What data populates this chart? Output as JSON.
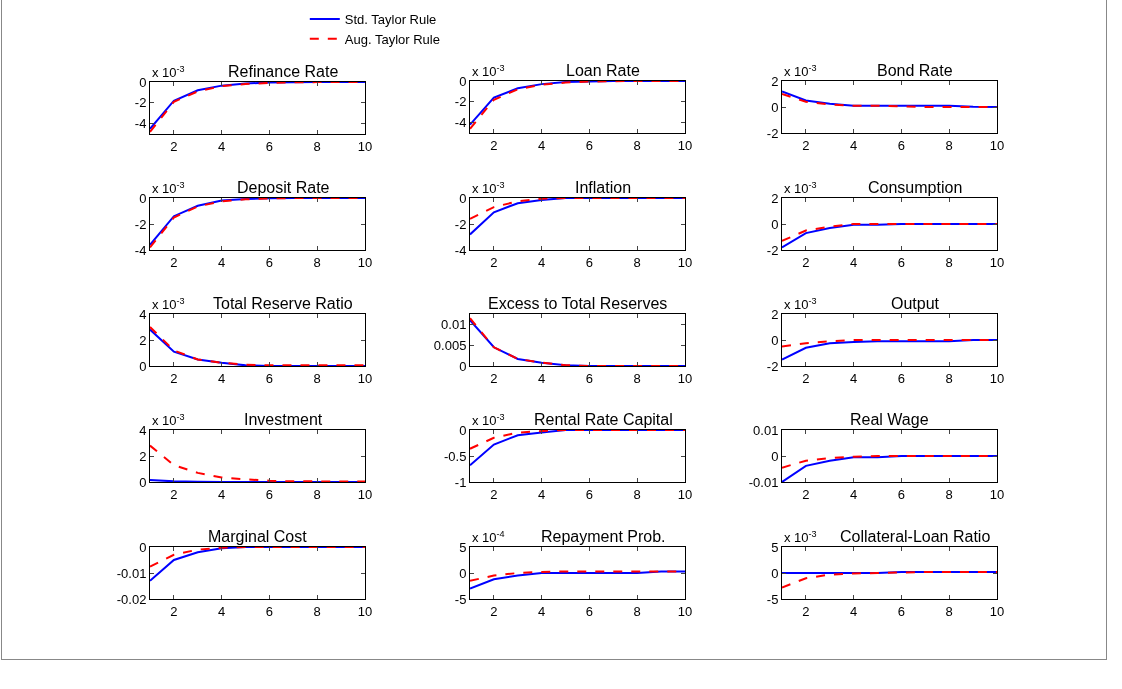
{
  "chart_data": [
    {
      "type": "line",
      "title": "Refinance Rate",
      "annotations": [
        "x 10$^{-3}$"
      ],
      "legend": "top",
      "grid": false,
      "marker": "none",
      "x": [
        1,
        2,
        3,
        4,
        5,
        6,
        7,
        8,
        9,
        10
      ],
      "xlim": [
        1,
        10
      ],
      "xticks": [
        2,
        4,
        6,
        8,
        10
      ],
      "ylim": [
        -5,
        0
      ],
      "yticks": [
        -4,
        -2,
        0
      ],
      "series": [
        {
          "name": "Std. Taylor Rule",
          "color": "#0000ff",
          "line_style": "solid",
          "values": [
            -4.5,
            -1.8,
            -0.8,
            -0.35,
            -0.15,
            -0.05,
            -0.02,
            0,
            0,
            0
          ]
        },
        {
          "name": "Aug. Taylor Rule",
          "color": "#ff0000",
          "line_style": "dashed",
          "values": [
            -4.8,
            -1.9,
            -0.9,
            -0.4,
            -0.2,
            -0.08,
            -0.03,
            -0.01,
            0,
            0
          ]
        }
      ]
    },
    {
      "type": "line",
      "title": "Loan Rate",
      "annotations": [
        "x 10$^{-3}$"
      ],
      "grid": false,
      "marker": "none",
      "x": [
        1,
        2,
        3,
        4,
        5,
        6,
        7,
        8,
        9,
        10
      ],
      "xlim": [
        1,
        10
      ],
      "xticks": [
        2,
        4,
        6,
        8,
        10
      ],
      "ylim": [
        -5,
        0
      ],
      "yticks": [
        -4,
        -2,
        0
      ],
      "series": [
        {
          "color": "#0000ff",
          "line_style": "solid",
          "values": [
            -4.2,
            -1.6,
            -0.7,
            -0.3,
            -0.1,
            -0.04,
            0,
            0,
            0,
            0
          ]
        },
        {
          "color": "#ff0000",
          "line_style": "dashed",
          "values": [
            -4.6,
            -1.8,
            -0.8,
            -0.35,
            -0.15,
            -0.05,
            -0.02,
            0,
            0,
            0
          ]
        }
      ]
    },
    {
      "type": "line",
      "title": "Bond Rate",
      "annotations": [
        "x 10$^{-3}$"
      ],
      "grid": false,
      "marker": "none",
      "x": [
        1,
        2,
        3,
        4,
        5,
        6,
        7,
        8,
        9,
        10
      ],
      "xlim": [
        1,
        10
      ],
      "xticks": [
        2,
        4,
        6,
        8,
        10
      ],
      "ylim": [
        -2,
        2
      ],
      "yticks": [
        -2,
        0,
        2
      ],
      "series": [
        {
          "color": "#0000ff",
          "line_style": "solid",
          "values": [
            1.2,
            0.5,
            0.25,
            0.1,
            0.1,
            0.1,
            0.1,
            0.1,
            0.02,
            0
          ]
        },
        {
          "color": "#ff0000",
          "line_style": "dashed",
          "values": [
            1.0,
            0.4,
            0.2,
            0.1,
            0.1,
            0.05,
            0,
            0,
            0,
            0
          ]
        }
      ]
    },
    {
      "type": "line",
      "title": "Deposit Rate",
      "annotations": [
        "x 10$^{-3}$"
      ],
      "grid": false,
      "marker": "none",
      "x": [
        1,
        2,
        3,
        4,
        5,
        6,
        7,
        8,
        9,
        10
      ],
      "xlim": [
        1,
        10
      ],
      "xticks": [
        2,
        4,
        6,
        8,
        10
      ],
      "ylim": [
        -4,
        0
      ],
      "yticks": [
        -4,
        -2,
        0
      ],
      "series": [
        {
          "color": "#0000ff",
          "line_style": "solid",
          "values": [
            -3.6,
            -1.4,
            -0.6,
            -0.2,
            -0.08,
            -0.02,
            0,
            0,
            0,
            0
          ]
        },
        {
          "color": "#ff0000",
          "line_style": "dashed",
          "values": [
            -3.8,
            -1.5,
            -0.65,
            -0.25,
            -0.1,
            -0.03,
            0,
            0,
            0,
            0
          ]
        }
      ]
    },
    {
      "type": "line",
      "title": "Inflation",
      "annotations": [
        "x 10$^{-3}$"
      ],
      "grid": false,
      "marker": "none",
      "x": [
        1,
        2,
        3,
        4,
        5,
        6,
        7,
        8,
        9,
        10
      ],
      "xlim": [
        1,
        10
      ],
      "xticks": [
        2,
        4,
        6,
        8,
        10
      ],
      "ylim": [
        -4,
        0
      ],
      "yticks": [
        -4,
        -2,
        0
      ],
      "series": [
        {
          "color": "#0000ff",
          "line_style": "solid",
          "values": [
            -2.8,
            -1.1,
            -0.4,
            -0.15,
            0,
            0,
            0,
            0,
            0,
            0
          ]
        },
        {
          "color": "#ff0000",
          "line_style": "dashed",
          "values": [
            -1.6,
            -0.7,
            -0.25,
            -0.05,
            0,
            0,
            0,
            0,
            0,
            0
          ]
        }
      ]
    },
    {
      "type": "line",
      "title": "Consumption",
      "annotations": [
        "x 10$^{-3}$"
      ],
      "grid": false,
      "marker": "none",
      "x": [
        1,
        2,
        3,
        4,
        5,
        6,
        7,
        8,
        9,
        10
      ],
      "xlim": [
        1,
        10
      ],
      "xticks": [
        2,
        4,
        6,
        8,
        10
      ],
      "ylim": [
        -2,
        2
      ],
      "yticks": [
        -2,
        0,
        2
      ],
      "series": [
        {
          "color": "#0000ff",
          "line_style": "solid",
          "values": [
            -1.8,
            -0.7,
            -0.3,
            -0.05,
            -0.05,
            0,
            0,
            0,
            0,
            0
          ]
        },
        {
          "color": "#ff0000",
          "line_style": "dashed",
          "values": [
            -1.3,
            -0.5,
            -0.2,
            0,
            0,
            0,
            0,
            0,
            0,
            0
          ]
        }
      ]
    },
    {
      "type": "line",
      "title": "Total Reserve Ratio",
      "annotations": [
        "x 10$^{-3}$"
      ],
      "grid": false,
      "marker": "none",
      "x": [
        1,
        2,
        3,
        4,
        5,
        6,
        7,
        8,
        9,
        10
      ],
      "xlim": [
        1,
        10
      ],
      "xticks": [
        2,
        4,
        6,
        8,
        10
      ],
      "ylim": [
        0,
        4
      ],
      "yticks": [
        0,
        2,
        4
      ],
      "series": [
        {
          "color": "#0000ff",
          "line_style": "solid",
          "values": [
            2.8,
            1.1,
            0.5,
            0.25,
            0.05,
            0,
            0,
            0,
            0,
            0
          ]
        },
        {
          "color": "#ff0000",
          "line_style": "dashed",
          "values": [
            3.0,
            1.2,
            0.5,
            0.25,
            0.1,
            0.05,
            0.05,
            0.05,
            0.05,
            0.05
          ]
        }
      ]
    },
    {
      "type": "line",
      "title": "Excess to Total Reserves",
      "grid": false,
      "marker": "none",
      "x": [
        1,
        2,
        3,
        4,
        5,
        6,
        7,
        8,
        9,
        10
      ],
      "xlim": [
        1,
        10
      ],
      "xticks": [
        2,
        4,
        6,
        8,
        10
      ],
      "ylim": [
        0,
        0.0125
      ],
      "yticks": [
        0,
        0.005,
        0.01
      ],
      "series": [
        {
          "color": "#0000ff",
          "line_style": "solid",
          "values": [
            0.011,
            0.0045,
            0.0017,
            0.0008,
            0.0002,
            0,
            0,
            0,
            0,
            0
          ]
        },
        {
          "color": "#ff0000",
          "line_style": "dashed",
          "values": [
            0.0115,
            0.0045,
            0.0017,
            0.0008,
            0.0002,
            0,
            0,
            0,
            0,
            0
          ]
        }
      ]
    },
    {
      "type": "line",
      "title": "Output",
      "annotations": [
        "x 10$^{-3}$"
      ],
      "grid": false,
      "marker": "none",
      "x": [
        1,
        2,
        3,
        4,
        5,
        6,
        7,
        8,
        9,
        10
      ],
      "xlim": [
        1,
        10
      ],
      "xticks": [
        2,
        4,
        6,
        8,
        10
      ],
      "ylim": [
        -2,
        2
      ],
      "yticks": [
        -2,
        0,
        2
      ],
      "series": [
        {
          "color": "#0000ff",
          "line_style": "solid",
          "values": [
            -1.5,
            -0.6,
            -0.25,
            -0.15,
            -0.1,
            -0.1,
            -0.1,
            -0.1,
            0,
            0
          ]
        },
        {
          "color": "#ff0000",
          "line_style": "dashed",
          "values": [
            -0.5,
            -0.25,
            -0.1,
            0,
            0,
            0,
            0,
            0,
            0,
            0
          ]
        }
      ]
    },
    {
      "type": "line",
      "title": "Investment",
      "annotations": [
        "x 10$^{-3}$"
      ],
      "grid": false,
      "marker": "none",
      "x": [
        1,
        2,
        3,
        4,
        5,
        6,
        7,
        8,
        9,
        10
      ],
      "xlim": [
        1,
        10
      ],
      "xticks": [
        2,
        4,
        6,
        8,
        10
      ],
      "ylim": [
        0,
        4
      ],
      "yticks": [
        0,
        2,
        4
      ],
      "series": [
        {
          "color": "#0000ff",
          "line_style": "solid",
          "values": [
            0.15,
            0.05,
            0.02,
            0,
            0,
            0,
            0,
            0,
            0,
            0
          ]
        },
        {
          "color": "#ff0000",
          "line_style": "dashed",
          "values": [
            2.8,
            1.3,
            0.7,
            0.35,
            0.2,
            0.1,
            0.05,
            0.05,
            0.03,
            0.03
          ]
        }
      ]
    },
    {
      "type": "line",
      "title": "Rental Rate Capital",
      "annotations": [
        "x 10$^{-3}$"
      ],
      "grid": false,
      "marker": "none",
      "x": [
        1,
        2,
        3,
        4,
        5,
        6,
        7,
        8,
        9,
        10
      ],
      "xlim": [
        1,
        10
      ],
      "xticks": [
        2,
        4,
        6,
        8,
        10
      ],
      "ylim": [
        -1,
        0
      ],
      "yticks": [
        -1,
        -0.5,
        0
      ],
      "series": [
        {
          "color": "#0000ff",
          "line_style": "solid",
          "values": [
            -0.68,
            -0.28,
            -0.1,
            -0.05,
            0,
            0,
            0,
            0,
            0,
            0
          ]
        },
        {
          "color": "#ff0000",
          "line_style": "dashed",
          "values": [
            -0.36,
            -0.15,
            -0.05,
            -0.02,
            0,
            0,
            0,
            0,
            0,
            0
          ]
        }
      ]
    },
    {
      "type": "line",
      "title": "Real Wage",
      "grid": false,
      "marker": "none",
      "x": [
        1,
        2,
        3,
        4,
        5,
        6,
        7,
        8,
        9,
        10
      ],
      "xlim": [
        1,
        10
      ],
      "xticks": [
        2,
        4,
        6,
        8,
        10
      ],
      "ylim": [
        -0.01,
        0.01
      ],
      "yticks": [
        -0.01,
        0,
        0.01
      ],
      "series": [
        {
          "color": "#0000ff",
          "line_style": "solid",
          "values": [
            -0.01,
            -0.0038,
            -0.0018,
            -0.0005,
            -0.0005,
            0,
            0,
            0,
            0,
            0
          ]
        },
        {
          "color": "#ff0000",
          "line_style": "dashed",
          "values": [
            -0.0045,
            -0.0018,
            -0.0008,
            -0.0003,
            0,
            0,
            0,
            0,
            0,
            0
          ]
        }
      ]
    },
    {
      "type": "line",
      "title": "Marginal Cost",
      "grid": false,
      "marker": "none",
      "x": [
        1,
        2,
        3,
        4,
        5,
        6,
        7,
        8,
        9,
        10
      ],
      "xlim": [
        1,
        10
      ],
      "xticks": [
        2,
        4,
        6,
        8,
        10
      ],
      "ylim": [
        -0.02,
        0
      ],
      "yticks": [
        -0.02,
        -0.01,
        0
      ],
      "series": [
        {
          "color": "#0000ff",
          "line_style": "solid",
          "values": [
            -0.013,
            -0.005,
            -0.002,
            -0.0005,
            0,
            0,
            0,
            0,
            0,
            0
          ]
        },
        {
          "color": "#ff0000",
          "line_style": "dashed",
          "values": [
            -0.0075,
            -0.003,
            -0.001,
            -0.0003,
            0,
            0,
            0,
            0,
            0,
            0
          ]
        }
      ]
    },
    {
      "type": "line",
      "title": "Repayment Prob.",
      "annotations": [
        "x 10$^{-4}$"
      ],
      "grid": false,
      "marker": "none",
      "x": [
        1,
        2,
        3,
        4,
        5,
        6,
        7,
        8,
        9,
        10
      ],
      "xlim": [
        1,
        10
      ],
      "xticks": [
        2,
        4,
        6,
        8,
        10
      ],
      "ylim": [
        -5,
        5
      ],
      "yticks": [
        -5,
        0,
        5
      ],
      "series": [
        {
          "color": "#0000ff",
          "line_style": "solid",
          "values": [
            -3,
            -1.2,
            -0.5,
            0,
            0,
            0,
            0,
            0,
            0.3,
            0.3
          ]
        },
        {
          "color": "#ff0000",
          "line_style": "dashed",
          "values": [
            -1.5,
            -0.5,
            0,
            0.2,
            0.3,
            0.3,
            0.3,
            0.3,
            0.3,
            0.3
          ]
        }
      ]
    },
    {
      "type": "line",
      "title": "Collateral-Loan Ratio",
      "annotations": [
        "x 10$^{-3}$"
      ],
      "grid": false,
      "marker": "none",
      "x": [
        1,
        2,
        3,
        4,
        5,
        6,
        7,
        8,
        9,
        10
      ],
      "xlim": [
        1,
        10
      ],
      "xticks": [
        2,
        4,
        6,
        8,
        10
      ],
      "ylim": [
        -5,
        5
      ],
      "yticks": [
        -5,
        0,
        5
      ],
      "series": [
        {
          "color": "#0000ff",
          "line_style": "solid",
          "values": [
            0,
            0,
            0,
            0,
            0,
            0.2,
            0.2,
            0.2,
            0.2,
            0.2
          ]
        },
        {
          "color": "#ff0000",
          "line_style": "dashed",
          "values": [
            -2.8,
            -1,
            -0.3,
            -0.1,
            0,
            0.1,
            0.2,
            0.2,
            0.2,
            0.2
          ]
        }
      ]
    }
  ]
}
